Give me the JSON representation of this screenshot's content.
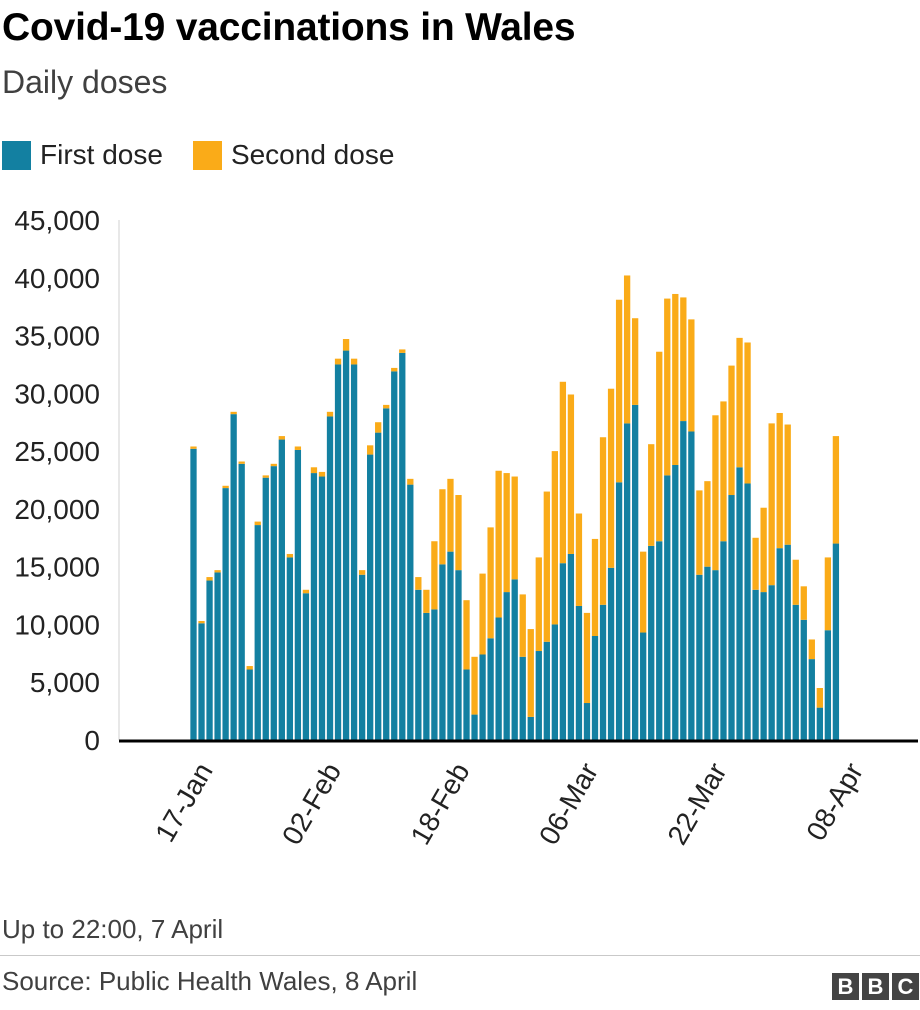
{
  "title": "Covid-19 vaccinations in Wales",
  "subtitle": "Daily doses",
  "footnote": "Up to 22:00, 7 April",
  "source": "Source: Public Health Wales, 8 April",
  "logo_letters": [
    "B",
    "B",
    "C"
  ],
  "colors": {
    "first_dose": "#1380A1",
    "second_dose": "#FAAB18",
    "axis": "#000000",
    "text": "#222222"
  },
  "chart_data": {
    "type": "bar",
    "stacked": true,
    "ylim": [
      0,
      45000
    ],
    "yticks": [
      0,
      5000,
      10000,
      15000,
      20000,
      25000,
      30000,
      35000,
      40000,
      45000
    ],
    "ytick_labels": [
      "0",
      "5,000",
      "10,000",
      "15,000",
      "20,000",
      "25,000",
      "30,000",
      "35,000",
      "40,000",
      "45,000"
    ],
    "xtick_labels": [
      "17-Jan",
      "02-Feb",
      "18-Feb",
      "06-Mar",
      "22-Mar",
      "08-Apr"
    ],
    "xtick_day_index": [
      0,
      16,
      32,
      48,
      64,
      81
    ],
    "legend_position": "top-left",
    "grid": false,
    "series": [
      {
        "name": "First dose",
        "color": "#1380A1",
        "values": [
          25200,
          10100,
          13800,
          14500,
          21800,
          28200,
          23900,
          6100,
          18600,
          22700,
          23700,
          26000,
          15800,
          25100,
          12700,
          23100,
          22800,
          28000,
          32500,
          33700,
          32500,
          14300,
          24700,
          26600,
          28700,
          31900,
          33500,
          22100,
          13000,
          11000,
          11300,
          15200,
          16300,
          14700,
          6100,
          2200,
          7400,
          8800,
          10600,
          12800,
          13900,
          7200,
          2000,
          7700,
          8500,
          10000,
          15300,
          16100,
          11600,
          3200,
          9000,
          11700,
          14900,
          22300,
          27400,
          29000,
          9300,
          16800,
          17200,
          22900,
          23800,
          27600,
          26700,
          14300,
          15000,
          14700,
          17200,
          21200,
          23600,
          22200,
          13000,
          12800,
          13400,
          16600,
          16900,
          11700,
          10400,
          7000,
          2800,
          9500,
          17000
        ]
      },
      {
        "name": "Second dose",
        "color": "#FAAB18",
        "values": [
          200,
          200,
          300,
          200,
          200,
          200,
          200,
          300,
          300,
          200,
          200,
          300,
          300,
          300,
          300,
          500,
          400,
          400,
          500,
          1000,
          500,
          400,
          800,
          900,
          300,
          300,
          300,
          500,
          1100,
          2000,
          5900,
          6500,
          6300,
          6500,
          6000,
          5000,
          7000,
          9600,
          12700,
          10300,
          8900,
          5400,
          7600,
          8100,
          13000,
          15000,
          15700,
          13800,
          8000,
          7800,
          8400,
          14500,
          15500,
          15800,
          12800,
          7500,
          7000,
          8800,
          16400,
          15300,
          14800,
          10700,
          9700,
          7300,
          7400,
          13400,
          12100,
          11200,
          11200,
          12200,
          4500,
          7300,
          14000,
          11700,
          10400,
          3900,
          2900,
          1700,
          1700,
          6300,
          9300
        ]
      }
    ]
  }
}
